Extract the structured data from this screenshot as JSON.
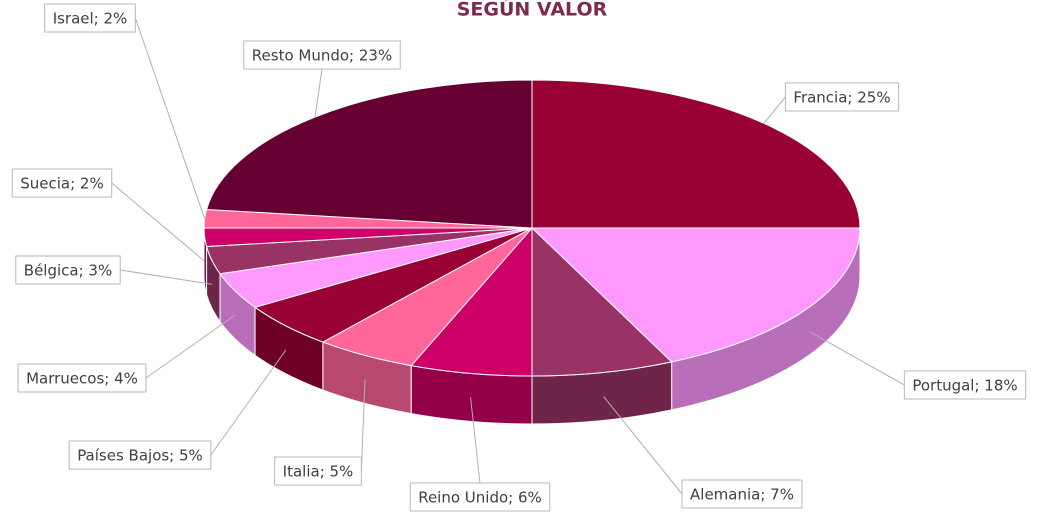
{
  "chart_data": {
    "type": "pie",
    "title": "SEGÚN VALOR",
    "categories": [
      "Francia",
      "Portugal",
      "Alemania",
      "Reino Unido",
      "Italia",
      "Países Bajos",
      "Marruecos",
      "Bélgica",
      "Suecia",
      "Israel",
      "Resto Mundo"
    ],
    "values": [
      25,
      18,
      7,
      6,
      5,
      5,
      4,
      3,
      2,
      2,
      23
    ],
    "value_labels": [
      "Francia; 25%",
      "Portugal; 18%",
      "Alemania; 7%",
      "Reino Unido; 6%",
      "Italia; 5%",
      "Países Bajos; 5%",
      "Marruecos; 4%",
      "Bélgica; 3%",
      "Suecia; 2%",
      "Israel; 2%",
      "Resto Mundo; 23%"
    ],
    "colors": [
      "#990033",
      "#ff99ff",
      "#993366",
      "#cc0066",
      "#ff6699",
      "#990033",
      "#ff99ff",
      "#993366",
      "#cc0066",
      "#ff6699",
      "#660033"
    ]
  }
}
